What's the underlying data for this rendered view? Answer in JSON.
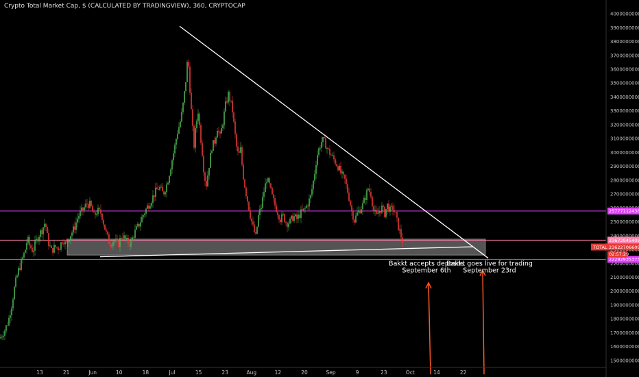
{
  "header": {
    "title": "Crypto Total Market Cap, $ (CALCULATED BY TRADINGVIEW), 360, CRYPTOCAP"
  },
  "colors": {
    "background": "#000000",
    "up": "#4caf50",
    "down": "#e53935",
    "magenta_line": "#e040fb",
    "pink_line": "#ff80ab",
    "trend_line": "#ffffff",
    "arrow": "#ff5722",
    "price_tag": "#e53935"
  },
  "chart_data": {
    "type": "candlestick",
    "x_ticks": [
      "13",
      "21",
      "Jun",
      "10",
      "18",
      "Jul",
      "15",
      "23",
      "Aug",
      "12",
      "20",
      "Sep",
      "9",
      "23",
      "Oct",
      "14",
      "22"
    ],
    "y_ticks": [
      150000000000,
      160000000000,
      170000000000,
      180000000000,
      190000000000,
      200000000000,
      210000000000,
      220000000000,
      230000000000,
      240000000000,
      250000000000,
      260000000000,
      270000000000,
      280000000000,
      290000000000,
      300000000000,
      310000000000,
      320000000000,
      330000000000,
      340000000000,
      350000000000,
      360000000000,
      370000000000,
      380000000000,
      390000000000,
      400000000000
    ],
    "ylim": [
      145000000000,
      403000000000
    ],
    "close_path": [
      [
        0,
        166000000000
      ],
      [
        7,
        172000000000
      ],
      [
        12,
        178000000000
      ],
      [
        17,
        190000000000
      ],
      [
        22,
        205000000000
      ],
      [
        27,
        215000000000
      ],
      [
        32,
        222000000000
      ],
      [
        37,
        230000000000
      ],
      [
        40,
        238000000000
      ],
      [
        43,
        233000000000
      ],
      [
        48,
        229000000000
      ],
      [
        52,
        235000000000
      ],
      [
        56,
        240000000000
      ],
      [
        61,
        244000000000
      ],
      [
        66,
        250000000000
      ],
      [
        70,
        236000000000
      ],
      [
        75,
        229000000000
      ],
      [
        80,
        232000000000
      ],
      [
        86,
        231000000000
      ],
      [
        92,
        238000000000
      ],
      [
        96,
        233000000000
      ],
      [
        102,
        240000000000
      ],
      [
        108,
        245000000000
      ],
      [
        114,
        254000000000
      ],
      [
        120,
        258000000000
      ],
      [
        127,
        263000000000
      ],
      [
        132,
        262000000000
      ],
      [
        137,
        254000000000
      ],
      [
        142,
        258000000000
      ],
      [
        148,
        256000000000
      ],
      [
        154,
        243000000000
      ],
      [
        160,
        234000000000
      ],
      [
        166,
        237000000000
      ],
      [
        172,
        233000000000
      ],
      [
        178,
        241000000000
      ],
      [
        184,
        236000000000
      ],
      [
        190,
        234000000000
      ],
      [
        196,
        242000000000
      ],
      [
        202,
        247000000000
      ],
      [
        208,
        254000000000
      ],
      [
        214,
        260000000000
      ],
      [
        220,
        265000000000
      ],
      [
        226,
        271000000000
      ],
      [
        232,
        275000000000
      ],
      [
        238,
        270000000000
      ],
      [
        244,
        278000000000
      ],
      [
        249,
        290000000000
      ],
      [
        254,
        302000000000
      ],
      [
        259,
        315000000000
      ],
      [
        264,
        324000000000
      ],
      [
        268,
        338000000000
      ],
      [
        271,
        352000000000
      ],
      [
        274,
        370000000000
      ],
      [
        277,
        346000000000
      ],
      [
        280,
        322000000000
      ],
      [
        283,
        305000000000
      ],
      [
        286,
        320000000000
      ],
      [
        289,
        330000000000
      ],
      [
        292,
        314000000000
      ],
      [
        295,
        300000000000
      ],
      [
        298,
        283000000000
      ],
      [
        301,
        277000000000
      ],
      [
        305,
        291000000000
      ],
      [
        309,
        304000000000
      ],
      [
        313,
        308000000000
      ],
      [
        317,
        318000000000
      ],
      [
        321,
        311000000000
      ],
      [
        325,
        322000000000
      ],
      [
        329,
        334000000000
      ],
      [
        333,
        342000000000
      ],
      [
        336,
        337000000000
      ],
      [
        339,
        330000000000
      ],
      [
        342,
        316000000000
      ],
      [
        345,
        304000000000
      ],
      [
        348,
        297000000000
      ],
      [
        351,
        302000000000
      ],
      [
        354,
        286000000000
      ],
      [
        358,
        273000000000
      ],
      [
        362,
        263000000000
      ],
      [
        366,
        252000000000
      ],
      [
        370,
        244000000000
      ],
      [
        373,
        239000000000
      ],
      [
        377,
        254000000000
      ],
      [
        381,
        261000000000
      ],
      [
        385,
        272000000000
      ],
      [
        389,
        281000000000
      ],
      [
        393,
        276000000000
      ],
      [
        397,
        268000000000
      ],
      [
        401,
        262000000000
      ],
      [
        405,
        257000000000
      ],
      [
        409,
        252000000000
      ],
      [
        413,
        254000000000
      ],
      [
        418,
        249000000000
      ],
      [
        423,
        250000000000
      ],
      [
        428,
        254000000000
      ],
      [
        433,
        252000000000
      ],
      [
        438,
        256000000000
      ],
      [
        443,
        258000000000
      ],
      [
        448,
        262000000000
      ],
      [
        453,
        268000000000
      ],
      [
        458,
        282000000000
      ],
      [
        462,
        297000000000
      ],
      [
        466,
        304000000000
      ],
      [
        470,
        309000000000
      ],
      [
        474,
        307000000000
      ],
      [
        478,
        302000000000
      ],
      [
        483,
        298000000000
      ],
      [
        488,
        294000000000
      ],
      [
        493,
        290000000000
      ],
      [
        498,
        284000000000
      ],
      [
        503,
        280000000000
      ],
      [
        508,
        270000000000
      ],
      [
        513,
        258000000000
      ],
      [
        517,
        251000000000
      ],
      [
        521,
        256000000000
      ],
      [
        525,
        259000000000
      ],
      [
        529,
        262000000000
      ],
      [
        533,
        268000000000
      ],
      [
        537,
        274000000000
      ],
      [
        541,
        270000000000
      ],
      [
        545,
        258000000000
      ],
      [
        549,
        254000000000
      ],
      [
        553,
        258000000000
      ],
      [
        557,
        260000000000
      ],
      [
        561,
        256000000000
      ],
      [
        565,
        262000000000
      ],
      [
        569,
        258000000000
      ],
      [
        573,
        260000000000
      ],
      [
        577,
        255000000000
      ],
      [
        580,
        248000000000
      ],
      [
        583,
        243000000000
      ],
      [
        587,
        236000000000
      ]
    ],
    "horizontal_levels": [
      {
        "price": 257771124386,
        "label": "257771124386",
        "kind": "magenta"
      },
      {
        "price": 236729454080,
        "label": "236729454080",
        "kind": "pink"
      },
      {
        "price": 222929353756,
        "label": "222929353756",
        "kind": "magenta"
      }
    ],
    "current_price": {
      "symbol": "TOTAL",
      "value": "236227066098",
      "countdown": "02:57:29"
    },
    "support_zone": {
      "x_start": 98,
      "x_end": 708,
      "y_top": 237500000000,
      "y_bottom": 226000000000
    },
    "trend_lines": [
      {
        "from": [
          262,
          391000000000
        ],
        "to": [
          712,
          223800000000
        ]
      },
      {
        "from": [
          146,
          224800000000
        ],
        "to": [
          690,
          232000000000
        ]
      }
    ],
    "annotations": [
      {
        "line1": "Bakkt accepts deposits",
        "line2": "September 6th",
        "x": 622
      },
      {
        "line1": "Bakkt goes live for trading",
        "line2": "September 23rd",
        "x": 714
      }
    ],
    "arrows": [
      {
        "x_bottom": 628,
        "x_top": 625,
        "y_bottom": 140000000000,
        "y_top": 206000000000
      },
      {
        "x_bottom": 706,
        "x_top": 704,
        "y_bottom": 140000000000,
        "y_top": 215000000000
      }
    ]
  }
}
